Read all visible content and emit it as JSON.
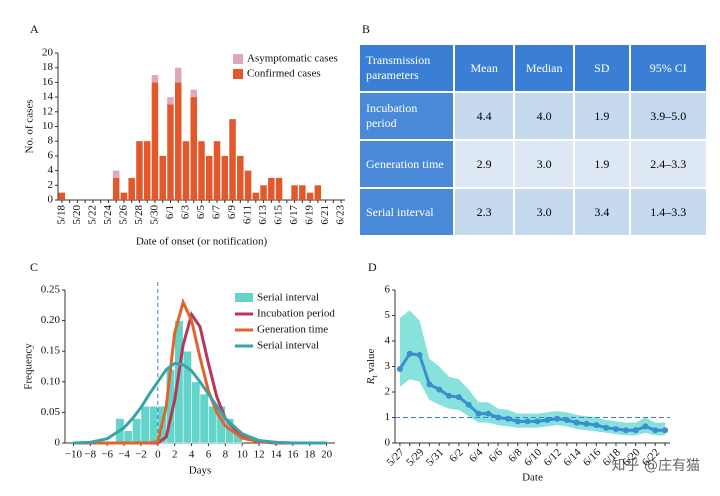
{
  "chart_data": [
    {
      "type": "bar",
      "panel": "A",
      "xlabel": "Date of onset (or notification)",
      "ylabel": "No. of cases",
      "categories": [
        "5/18",
        null,
        "5/20",
        null,
        "5/22",
        null,
        "5/24",
        null,
        "5/26",
        null,
        "5/28",
        null,
        "5/30",
        null,
        "6/1",
        null,
        "6/3",
        null,
        "6/5",
        null,
        "6/7",
        null,
        "6/9",
        null,
        "6/11",
        null,
        "6/13",
        null,
        "6/15",
        null,
        "6/17",
        null,
        "6/19",
        null,
        "6/21",
        null,
        "6/23"
      ],
      "series": [
        {
          "name": "Confirmed cases",
          "color": "#e2582a",
          "values": [
            1,
            0,
            0,
            0,
            0,
            0,
            0,
            3,
            1,
            3,
            8,
            8,
            16,
            6,
            13,
            16,
            8,
            14,
            8,
            6,
            8,
            6,
            11,
            6,
            4,
            1,
            2,
            3,
            3,
            0,
            2,
            2,
            1,
            2,
            0,
            0,
            0
          ]
        },
        {
          "name": "Asymptomatic cases",
          "color": "#e0a6c0",
          "values": [
            0,
            0,
            0,
            0,
            0,
            0,
            0,
            1,
            0,
            0,
            0,
            0,
            1,
            0,
            1,
            2,
            0,
            1,
            0,
            0,
            0,
            0,
            0,
            0,
            0,
            0,
            0,
            0,
            0,
            0,
            0,
            0,
            0,
            0,
            0,
            0,
            0
          ]
        }
      ],
      "stacked": true,
      "ylim": [
        0,
        20
      ],
      "yticks": [
        0,
        2,
        4,
        6,
        8,
        10,
        12,
        14,
        16,
        18,
        20
      ]
    },
    {
      "type": "histogram",
      "panel": "C",
      "xlabel": "Days",
      "ylabel": "Frequency",
      "histogram": {
        "name": "Serial interval",
        "color": "#62d4c9",
        "bins": [
          -5,
          -4,
          -3,
          -2,
          -1,
          0,
          1,
          2,
          3,
          4,
          5,
          6,
          7,
          8,
          9,
          10
        ],
        "values": [
          0.04,
          0.02,
          0.04,
          0.06,
          0.06,
          0.06,
          0.12,
          0.2,
          0.15,
          0.1,
          0.08,
          0.06,
          0.06,
          0.04,
          0.02
        ]
      },
      "x": [
        -10,
        -8,
        -6,
        -4,
        -3,
        -2,
        -1,
        0,
        1,
        2,
        3,
        4,
        5,
        6,
        7,
        8,
        10,
        12,
        14,
        16,
        18,
        20
      ],
      "series": [
        {
          "name": "Incubation period",
          "color": "#b5385a",
          "values": [
            0,
            0,
            0,
            0,
            0,
            0,
            0,
            0,
            0.01,
            0.07,
            0.16,
            0.21,
            0.19,
            0.13,
            0.075,
            0.04,
            0.01,
            0.002,
            0,
            0,
            0,
            0
          ]
        },
        {
          "name": "Generation time",
          "color": "#e0642c",
          "values": [
            0,
            0,
            0,
            0,
            0,
            0,
            0,
            0.002,
            0.06,
            0.18,
            0.23,
            0.2,
            0.14,
            0.085,
            0.05,
            0.028,
            0.008,
            0.002,
            0.001,
            0,
            0,
            0
          ]
        },
        {
          "name": "Serial interval",
          "color": "#3aa3a8",
          "values": [
            0,
            0.001,
            0.007,
            0.025,
            0.04,
            0.058,
            0.08,
            0.1,
            0.12,
            0.13,
            0.128,
            0.118,
            0.1,
            0.08,
            0.06,
            0.04,
            0.015,
            0.004,
            0.001,
            0,
            0,
            0
          ]
        }
      ],
      "vline": 0,
      "xlim": [
        -11,
        21
      ],
      "xticks": [
        {
          "value": -10,
          "label": "−10"
        },
        {
          "value": -8,
          "label": "−8"
        },
        {
          "value": -6,
          "label": "−6"
        },
        {
          "value": -4,
          "label": "−4"
        },
        {
          "value": -2,
          "label": "−2"
        },
        0,
        2,
        4,
        6,
        8,
        10,
        12,
        14,
        16,
        18,
        20
      ],
      "ylim": [
        0,
        0.25
      ],
      "yticks": [
        0,
        0.05,
        {
          "value": 0.1,
          "label": "0.10"
        },
        0.15,
        {
          "value": 0.2,
          "label": "0.20"
        },
        0.25
      ]
    },
    {
      "type": "line",
      "panel": "D",
      "xlabel": "Date",
      "ylabel": [
        "R",
        "t",
        "value"
      ],
      "categories": [
        "5/27",
        null,
        "5/29",
        null,
        "5/31",
        null,
        "6/2",
        null,
        "6/4",
        null,
        "6/6",
        null,
        "6/8",
        null,
        "6/10",
        null,
        "6/12",
        null,
        "6/14",
        null,
        "6/16",
        null,
        "6/18",
        null,
        "6/20",
        null,
        "6/22",
        null
      ],
      "values": [
        2.9,
        3.5,
        3.45,
        2.3,
        2.1,
        1.85,
        1.8,
        1.5,
        1.15,
        1.15,
        1.0,
        0.95,
        0.85,
        0.85,
        0.85,
        0.9,
        0.95,
        0.9,
        0.8,
        0.75,
        0.7,
        0.6,
        0.55,
        0.5,
        0.5,
        0.65,
        0.5,
        0.5
      ],
      "lower": [
        2.2,
        2.5,
        2.4,
        1.7,
        1.5,
        1.35,
        1.3,
        1.05,
        0.8,
        0.8,
        0.7,
        0.65,
        0.6,
        0.6,
        0.6,
        0.65,
        0.7,
        0.65,
        0.55,
        0.5,
        0.45,
        0.4,
        0.35,
        0.3,
        0.3,
        0.4,
        0.3,
        0.3
      ],
      "upper": [
        4.9,
        5.2,
        4.8,
        3.3,
        3.0,
        2.6,
        2.5,
        2.1,
        1.6,
        1.6,
        1.35,
        1.3,
        1.15,
        1.15,
        1.15,
        1.2,
        1.25,
        1.2,
        1.1,
        1.05,
        1.0,
        0.9,
        0.85,
        0.8,
        0.8,
        1.0,
        0.8,
        0.8
      ],
      "color": "#3a8fd0",
      "band_color": "#5fd8d0",
      "hline": 1,
      "ylim": [
        0,
        6
      ],
      "yticks": [
        0,
        1,
        2,
        3,
        4,
        5,
        6
      ]
    }
  ],
  "table": {
    "panel": "B",
    "header": [
      "Transmission parameters",
      "Mean",
      "Median",
      "SD",
      "95% CI"
    ],
    "rows": [
      [
        "Incubation period",
        "4.4",
        "4.0",
        "1.9",
        "3.9–5.0"
      ],
      [
        "Generation time",
        "2.9",
        "3.0",
        "1.9",
        "2.4–3.3"
      ],
      [
        "Serial interval",
        "2.3",
        "3.0",
        "3.4",
        "1.4–3.3"
      ]
    ]
  },
  "watermark": "知乎 @庄有猫"
}
